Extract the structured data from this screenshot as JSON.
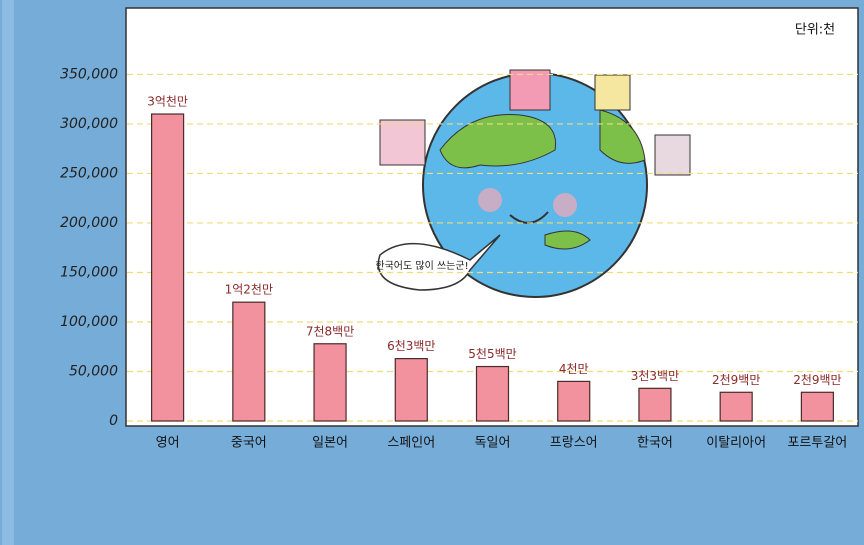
{
  "chart_data": {
    "type": "bar",
    "unit": "단위:천",
    "annotation": "한국어도 많이 쓰는군!",
    "categories": [
      "영어",
      "중국어",
      "일본어",
      "스페인어",
      "독일어",
      "프랑스어",
      "한국어",
      "이탈리아어",
      "포르투갈어"
    ],
    "values": [
      310000,
      120000,
      78000,
      63000,
      55000,
      40000,
      33000,
      29000,
      29000
    ],
    "value_labels": [
      "3억천만",
      "1억2천만",
      "7천8백만",
      "6천3백만",
      "5천5백만",
      "4천만",
      "3천3백만",
      "2천9백만",
      "2천9백만"
    ],
    "color": "#f2929f",
    "ylim": [
      0,
      410000
    ],
    "yticks": [
      0,
      {
        "value": 50000,
        "label": "50,000"
      },
      {
        "value": 100000,
        "label": "100,000"
      },
      {
        "value": 150000,
        "label": "150,000"
      },
      {
        "value": 200000,
        "label": "200,000"
      },
      {
        "value": 250000,
        "label": "250,000"
      },
      {
        "value": 300000,
        "label": "300,000"
      },
      {
        "value": 350000,
        "label": "350,000"
      }
    ],
    "grid": true
  }
}
